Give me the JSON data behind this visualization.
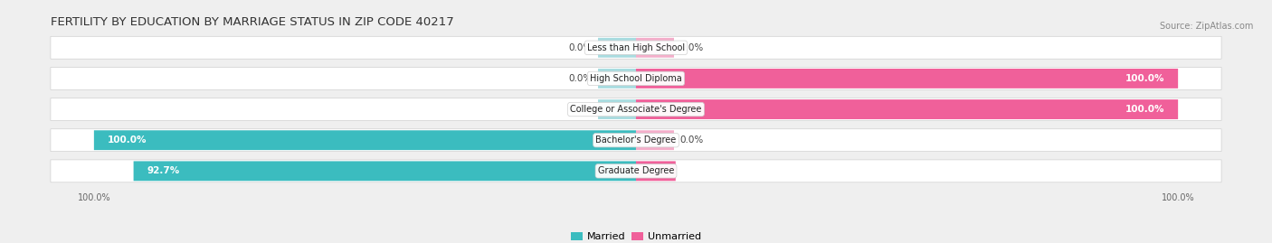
{
  "title": "FERTILITY BY EDUCATION BY MARRIAGE STATUS IN ZIP CODE 40217",
  "source": "Source: ZipAtlas.com",
  "categories": [
    "Less than High School",
    "High School Diploma",
    "College or Associate's Degree",
    "Bachelor's Degree",
    "Graduate Degree"
  ],
  "married": [
    0.0,
    0.0,
    0.0,
    100.0,
    92.7
  ],
  "unmarried": [
    0.0,
    100.0,
    100.0,
    0.0,
    7.3
  ],
  "married_color": "#3BBCBF",
  "unmarried_color": "#F0609A",
  "married_light": "#A8DCE0",
  "unmarried_light": "#F4AECA",
  "bg_color": "#efefef",
  "bar_bg_color": "#ffffff",
  "title_fontsize": 9.5,
  "source_fontsize": 7,
  "label_fontsize": 7.5,
  "tick_fontsize": 7,
  "bar_height": 0.62,
  "stub_size": 7
}
